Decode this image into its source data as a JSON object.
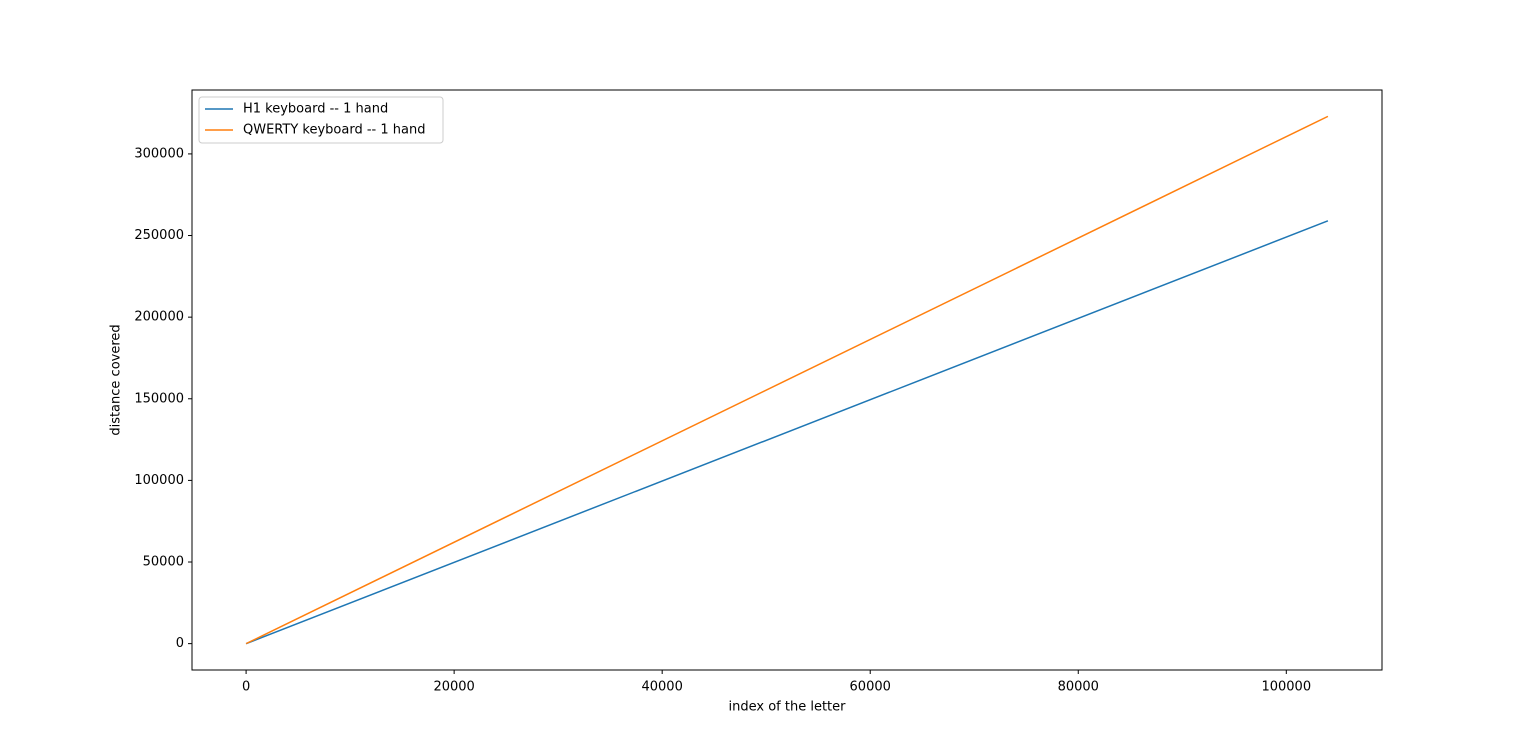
{
  "chart_data": {
    "type": "line",
    "xlabel": "index of the letter",
    "ylabel": "distance covered",
    "x": [
      0,
      104000
    ],
    "series": [
      {
        "name": "H1 keyboard -- 1 hand",
        "color": "#1f77b4",
        "values": [
          0,
          259000
        ]
      },
      {
        "name": "QWERTY keyboard -- 1 hand",
        "color": "#ff7f0e",
        "values": [
          0,
          323000
        ]
      }
    ],
    "xlim": [
      -5200,
      109200
    ],
    "xticks": [
      0,
      20000,
      40000,
      60000,
      80000,
      100000
    ],
    "ylim": [
      -16150,
      339150
    ],
    "yticks": [
      0,
      50000,
      100000,
      150000,
      200000,
      250000,
      300000
    ],
    "grid": false,
    "legend": "upper left"
  }
}
